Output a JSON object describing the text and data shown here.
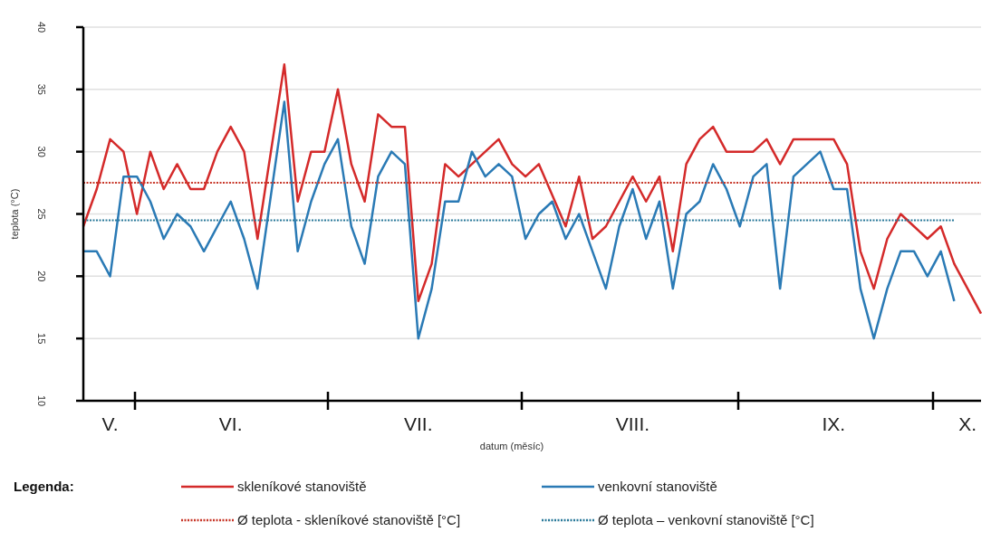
{
  "chart_data": {
    "type": "line",
    "xlabel": "datum (měsíc)",
    "ylabel": "teplota (°C)",
    "legend_title": "Legenda:",
    "categories": [
      null,
      null,
      "V.",
      null,
      null,
      null,
      null,
      null,
      null,
      null,
      null,
      "VI.",
      null,
      null,
      null,
      null,
      null,
      null,
      null,
      null,
      null,
      null,
      null,
      null,
      null,
      "VII.",
      null,
      null,
      null,
      null,
      null,
      null,
      null,
      null,
      null,
      null,
      null,
      null,
      null,
      null,
      null,
      "VIII.",
      null,
      null,
      null,
      null,
      null,
      null,
      null,
      null,
      null,
      null,
      null,
      null,
      null,
      null,
      "IX.",
      null,
      null,
      null,
      null,
      null,
      null,
      null,
      null,
      null,
      "X.",
      null
    ],
    "ylim": [
      10,
      40
    ],
    "yticks": [
      10,
      15,
      20,
      25,
      30,
      35,
      40
    ],
    "grid": "y",
    "legend": "bottom",
    "series": [
      {
        "name": "skleníkové stanoviště",
        "color": "#d42a2a",
        "values": [
          24,
          27,
          31,
          30,
          25,
          30,
          27,
          29,
          27,
          27,
          30,
          32,
          30,
          23,
          30,
          37,
          26,
          30,
          30,
          35,
          29,
          26,
          33,
          32,
          32,
          18,
          21,
          29,
          28,
          29,
          30,
          31,
          29,
          28,
          29,
          26.5,
          24,
          28,
          23,
          24,
          26,
          28,
          26,
          28,
          22,
          29,
          31,
          32,
          30,
          30,
          30,
          31,
          29,
          31,
          31,
          31,
          31,
          29,
          22,
          19,
          23,
          25,
          24,
          23,
          24,
          21,
          19,
          17
        ]
      },
      {
        "name": "venkovní stanoviště",
        "color": "#2a7ab5",
        "values": [
          22,
          22,
          20,
          28,
          28,
          26,
          23,
          25,
          24,
          22,
          24,
          26,
          23,
          19,
          26.5,
          34,
          22,
          26,
          29,
          31,
          24,
          21,
          28,
          30,
          29,
          15,
          19,
          26,
          26,
          30,
          28,
          29,
          28,
          23,
          25,
          26,
          23,
          25,
          22,
          19,
          24,
          27,
          23,
          26,
          19,
          25,
          26,
          29,
          27,
          24,
          28,
          29,
          19,
          28,
          29,
          30,
          27,
          27,
          19,
          15,
          19,
          22,
          22,
          20,
          22,
          18,
          null,
          null
        ]
      },
      {
        "name": "Ø teplota - skleníkové stanoviště  [°C]",
        "color": "#c8382a",
        "line_style": "dotted",
        "values": [
          27.5,
          27.5,
          27.5,
          27.5,
          27.5,
          27.5,
          27.5,
          27.5,
          27.5,
          27.5,
          27.5,
          27.5,
          27.5,
          27.5,
          27.5,
          27.5,
          27.5,
          27.5,
          27.5,
          27.5,
          27.5,
          27.5,
          27.5,
          27.5,
          27.5,
          27.5,
          27.5,
          27.5,
          27.5,
          27.5,
          27.5,
          27.5,
          27.5,
          27.5,
          27.5,
          27.5,
          27.5,
          27.5,
          27.5,
          27.5,
          27.5,
          27.5,
          27.5,
          27.5,
          27.5,
          27.5,
          27.5,
          27.5,
          27.5,
          27.5,
          27.5,
          27.5,
          27.5,
          27.5,
          27.5,
          27.5,
          27.5,
          27.5,
          27.5,
          27.5,
          27.5,
          27.5,
          27.5,
          27.5,
          27.5,
          27.5,
          27.5,
          27.5
        ]
      },
      {
        "name": "Ø teplota – venkovní stanoviště  [°C]",
        "color": "#2a7a9a",
        "line_style": "dotted",
        "values": [
          24.5,
          24.5,
          24.5,
          24.5,
          24.5,
          24.5,
          24.5,
          24.5,
          24.5,
          24.5,
          24.5,
          24.5,
          24.5,
          24.5,
          24.5,
          24.5,
          24.5,
          24.5,
          24.5,
          24.5,
          24.5,
          24.5,
          24.5,
          24.5,
          24.5,
          24.5,
          24.5,
          24.5,
          24.5,
          24.5,
          24.5,
          24.5,
          24.5,
          24.5,
          24.5,
          24.5,
          24.5,
          24.5,
          24.5,
          24.5,
          24.5,
          24.5,
          24.5,
          24.5,
          24.5,
          24.5,
          24.5,
          24.5,
          24.5,
          24.5,
          24.5,
          24.5,
          24.5,
          24.5,
          24.5,
          24.5,
          24.5,
          24.5,
          24.5,
          24.5,
          24.5,
          24.5,
          24.5,
          24.5,
          24.5,
          24.5,
          null,
          null
        ]
      }
    ]
  }
}
